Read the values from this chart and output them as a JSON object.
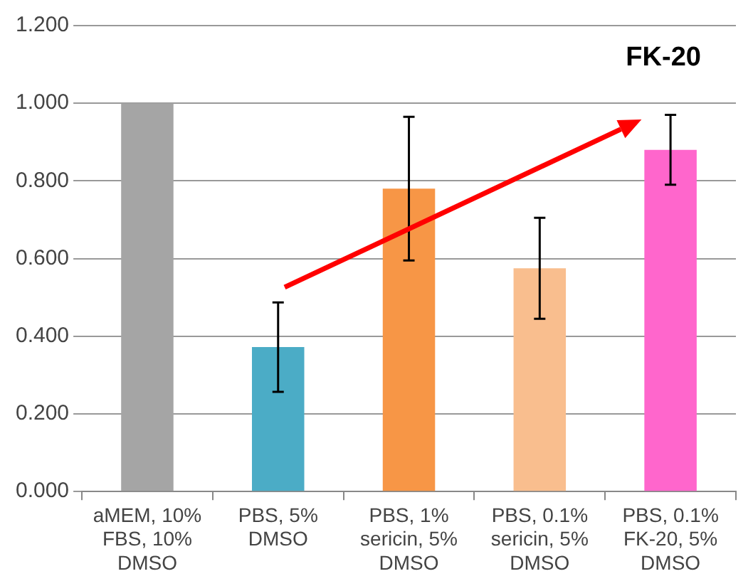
{
  "chart_data": {
    "type": "bar",
    "categories": [
      "aMEM, 10% FBS, 10% DMSO",
      "PBS, 5% DMSO",
      "PBS, 1% sericin, 5% DMSO",
      "PBS, 0.1% sericin, 5% DMSO",
      "PBS, 0.1% FK-20, 5% DMSO"
    ],
    "values": [
      1.0,
      0.372,
      0.78,
      0.575,
      0.88
    ],
    "errors": [
      null,
      0.115,
      0.185,
      0.13,
      0.09
    ],
    "colors": [
      "#a5a5a5",
      "#4bacc6",
      "#f79646",
      "#f9be8e",
      "#ff66cc"
    ],
    "ylim": [
      0,
      1.2
    ],
    "yticks": [
      {
        "value": 0,
        "label": "0.000"
      },
      {
        "value": 0.2,
        "label": "0.200"
      },
      {
        "value": 0.4,
        "label": "0.400"
      },
      {
        "value": 0.6,
        "label": "0.600"
      },
      {
        "value": 0.8,
        "label": "0.800"
      },
      {
        "value": 1.0,
        "label": "1.000"
      },
      {
        "value": 1.2,
        "label": "1.200"
      }
    ],
    "grid": "y",
    "legend": false,
    "annotations": [
      "FK-20"
    ]
  }
}
